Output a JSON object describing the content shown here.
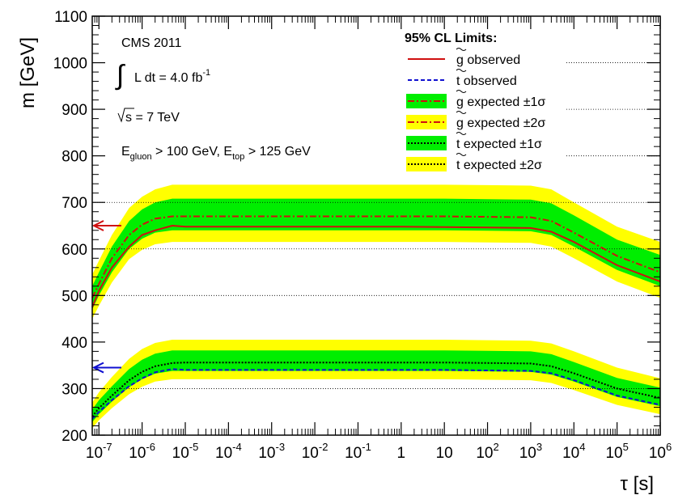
{
  "chart_data": {
    "type": "line",
    "xlabel": "τ [s]",
    "ylabel": "m [GeV]",
    "xscale": "log",
    "xlim": [
      7e-08,
      1000000.0
    ],
    "ylim": [
      200,
      1100
    ],
    "x_ticks": [
      {
        "value": 1e-07,
        "base": "10",
        "exp": "-7"
      },
      {
        "value": 1e-06,
        "base": "10",
        "exp": "-6"
      },
      {
        "value": 1e-05,
        "base": "10",
        "exp": "-5"
      },
      {
        "value": 0.0001,
        "base": "10",
        "exp": "-4"
      },
      {
        "value": 0.001,
        "base": "10",
        "exp": "-3"
      },
      {
        "value": 0.01,
        "base": "10",
        "exp": "-2"
      },
      {
        "value": 0.1,
        "base": "10",
        "exp": "-1"
      },
      {
        "value": 1,
        "base": "1",
        "exp": ""
      },
      {
        "value": 10,
        "base": "10",
        "exp": ""
      },
      {
        "value": 100.0,
        "base": "10",
        "exp": "2"
      },
      {
        "value": 1000.0,
        "base": "10",
        "exp": "3"
      },
      {
        "value": 10000.0,
        "base": "10",
        "exp": "4"
      },
      {
        "value": 100000.0,
        "base": "10",
        "exp": "5"
      },
      {
        "value": 1000000.0,
        "base": "10",
        "exp": "6"
      }
    ],
    "y_ticks": [
      200,
      300,
      400,
      500,
      600,
      700,
      800,
      900,
      1000,
      1100
    ],
    "grid": "horizontal dotted lines at 300, 500, 600, 700",
    "annotations": {
      "experiment": "CMS 2011",
      "lumi_prefix": "L dt = 4.0 fb",
      "lumi_exp": "-1",
      "energy_prefix": "s",
      "energy_suffix": " = 7 TeV",
      "cut_part1": "E",
      "cut_sub1": "gluon",
      "cut_part2": " > 100 GeV, E",
      "cut_sub2": "top",
      "cut_part3": " > 125 GeV"
    },
    "legend": {
      "title": "95% CL Limits:",
      "placement": "top-right",
      "entries": [
        {
          "glyph": "g",
          "label": " observed"
        },
        {
          "glyph": "t",
          "label": " observed"
        },
        {
          "glyph": "g",
          "label": " expected ±1σ"
        },
        {
          "glyph": "g",
          "label": " expected ±2σ"
        },
        {
          "glyph": "t",
          "label": " expected ±1σ"
        },
        {
          "glyph": "t",
          "label": " expected ±2σ"
        }
      ]
    },
    "series": [
      {
        "key": "gluino",
        "color_observed": "#d01010",
        "color_expected": "#d01010",
        "x": [
          7e-08,
          1e-07,
          2e-07,
          5e-07,
          1e-06,
          2e-06,
          5e-06,
          1e-05,
          0.0001,
          0.001,
          0.01,
          0.1,
          1,
          10,
          100.0,
          1000.0,
          3000.0,
          10000.0,
          100000.0,
          1000000.0
        ],
        "observed": [
          475,
          510,
          560,
          605,
          630,
          640,
          650,
          648,
          648,
          648,
          648,
          648,
          648,
          647,
          646,
          645,
          637,
          615,
          565,
          530
        ],
        "expected": [
          495,
          525,
          580,
          630,
          652,
          665,
          670,
          670,
          670,
          670,
          670,
          670,
          670,
          670,
          669,
          668,
          660,
          635,
          585,
          550
        ],
        "band1_low": [
          470,
          500,
          550,
          600,
          622,
          635,
          640,
          640,
          640,
          640,
          640,
          640,
          640,
          640,
          639,
          638,
          630,
          605,
          555,
          520
        ],
        "band1_high": [
          520,
          550,
          605,
          660,
          685,
          700,
          708,
          708,
          708,
          708,
          708,
          708,
          708,
          708,
          707,
          706,
          698,
          672,
          620,
          587
        ],
        "band2_low": [
          450,
          478,
          528,
          578,
          598,
          610,
          615,
          615,
          615,
          615,
          615,
          615,
          615,
          615,
          614,
          613,
          605,
          580,
          530,
          495
        ],
        "band2_high": [
          545,
          575,
          630,
          688,
          712,
          728,
          738,
          738,
          738,
          738,
          738,
          738,
          738,
          738,
          737,
          736,
          728,
          700,
          648,
          615
        ]
      },
      {
        "key": "stop",
        "color_observed": "#1010d0",
        "color_expected": "#000000",
        "x": [
          7e-08,
          1e-07,
          2e-07,
          5e-07,
          1e-06,
          2e-06,
          5e-06,
          1e-05,
          0.0001,
          0.001,
          0.01,
          0.1,
          1,
          10,
          100.0,
          1000.0,
          3000.0,
          10000.0,
          100000.0,
          1000000.0
        ],
        "observed": [
          235,
          250,
          275,
          305,
          322,
          335,
          342,
          340,
          340,
          340,
          340,
          340,
          340,
          340,
          339,
          338,
          333,
          318,
          285,
          265
        ],
        "expected": [
          240,
          258,
          285,
          318,
          336,
          348,
          355,
          356,
          356,
          356,
          356,
          356,
          356,
          356,
          355,
          354,
          348,
          333,
          300,
          280
        ],
        "band1_low": [
          228,
          245,
          272,
          303,
          320,
          332,
          338,
          338,
          338,
          338,
          338,
          338,
          338,
          338,
          337,
          336,
          330,
          315,
          282,
          262
        ],
        "band1_high": [
          255,
          275,
          305,
          342,
          362,
          375,
          382,
          382,
          382,
          382,
          382,
          382,
          382,
          382,
          381,
          380,
          374,
          357,
          323,
          302
        ],
        "band2_low": [
          215,
          232,
          258,
          288,
          304,
          315,
          320,
          320,
          320,
          320,
          320,
          320,
          320,
          320,
          319,
          318,
          312,
          297,
          265,
          245
        ],
        "band2_high": [
          270,
          292,
          325,
          364,
          385,
          398,
          405,
          405,
          405,
          405,
          405,
          405,
          405,
          405,
          404,
          403,
          397,
          380,
          345,
          322
        ]
      }
    ],
    "arrows": [
      {
        "series": "gluino",
        "y": 650,
        "color": "#d01010"
      },
      {
        "series": "stop",
        "y": 345,
        "color": "#1010d0"
      }
    ],
    "colors": {
      "band1": "#00ee00",
      "band2": "#ffff00"
    }
  }
}
